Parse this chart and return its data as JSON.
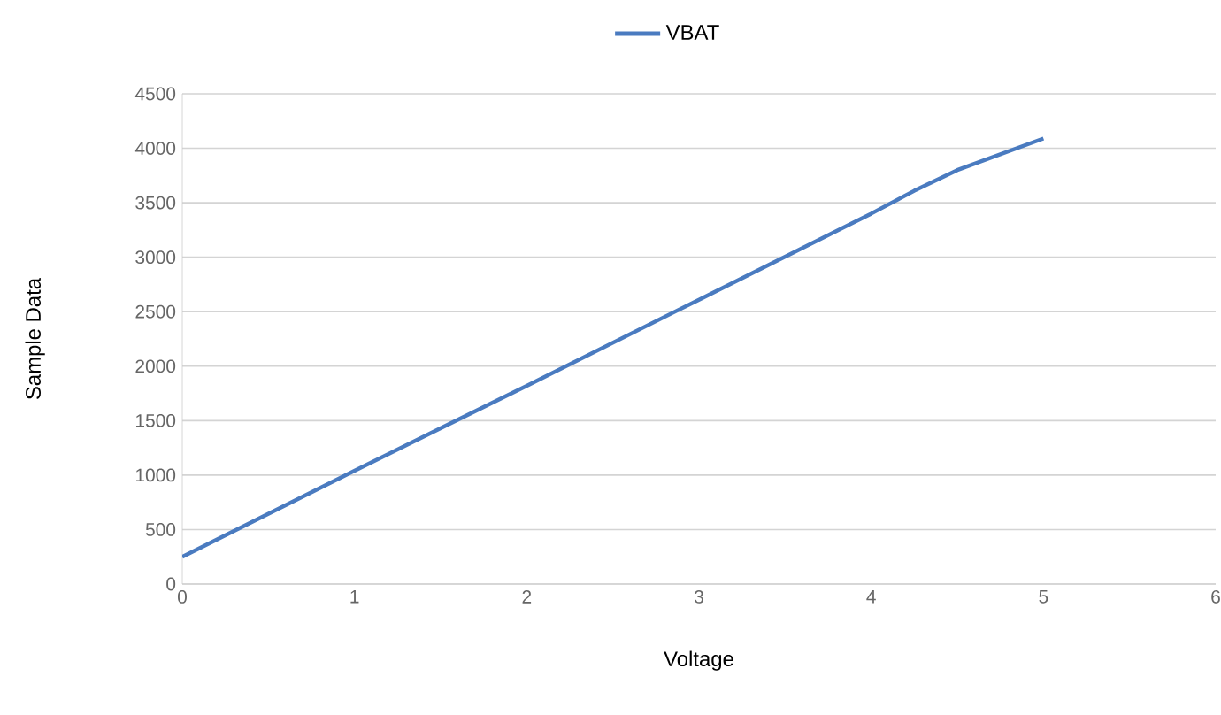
{
  "chart_data": {
    "type": "line",
    "xlabel": "Voltage",
    "ylabel": "Sample Data",
    "x": [
      0,
      1,
      2,
      3,
      4,
      4.25,
      4.5,
      5
    ],
    "series": [
      {
        "name": "VBAT",
        "color": "#4a7bc0",
        "values": [
          250,
          1040,
          1820,
          2610,
          3400,
          3610,
          3800,
          4090
        ]
      }
    ],
    "xlim": [
      0,
      6
    ],
    "xticks": [
      0,
      1,
      2,
      3,
      4,
      5,
      6
    ],
    "ylim": [
      0,
      4500
    ],
    "yticks": [
      0,
      500,
      1000,
      1500,
      2000,
      2500,
      3000,
      3500,
      4000,
      4500
    ],
    "grid": "y",
    "legend": "top",
    "marker": "none",
    "line_style": "solid"
  }
}
